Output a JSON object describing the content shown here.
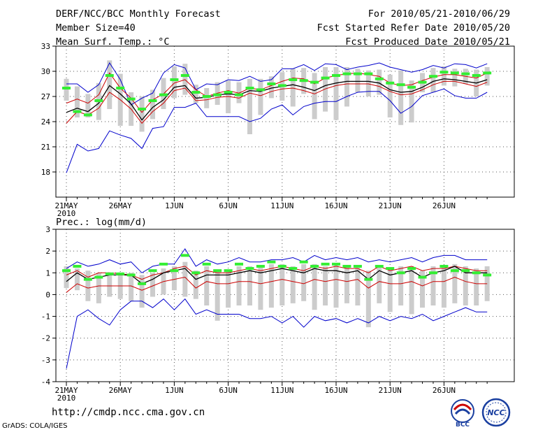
{
  "header": {
    "title": "DERF/NCC/BCC Monthly Forecast",
    "member_size": "Member Size=40",
    "variable": "Mean Surf. Temp.: °C",
    "period": "For 2010/05/21-2010/06/29",
    "started": "Fcst Started Refer Date 2010/05/20",
    "produced": "Fcst Produced Date 2010/05/21"
  },
  "footer": {
    "url": "http://cmdp.ncc.cma.gov.cn",
    "grads": "GrADS: COLA/IGES",
    "logo1": "BCC",
    "logo2": "NCC"
  },
  "colors": {
    "ens_max": "#0000cc",
    "ens_min": "#0000cc",
    "ens_mean": "#000000",
    "ens_band": "#cc0000",
    "obs_marker": "#33ee33",
    "bar": "#cccccc"
  },
  "chart_data": [
    {
      "type": "line",
      "title": "Mean Surf. Temp.: °C",
      "x_tick_labels": [
        "21MAY",
        "26MAY",
        "1JUN",
        "6JUN",
        "11JUN",
        "16JUN",
        "21JUN",
        "26JUN"
      ],
      "x_tick_sub": "2010",
      "ylim": [
        15,
        33
      ],
      "yticks": [
        18,
        21,
        24,
        27,
        30,
        33
      ],
      "series": [
        {
          "name": "max",
          "values": [
            28.5,
            28.5,
            27.5,
            28.4,
            31,
            29,
            26,
            26.8,
            27.4,
            29.8,
            30.8,
            30.4,
            27.8,
            28.5,
            28.4,
            29,
            28.9,
            29.4,
            28.8,
            29,
            30.3,
            30.3,
            30.8,
            30.1,
            30.9,
            30.8,
            30.2,
            30.5,
            30.7,
            31,
            30.5,
            30.2,
            29.9,
            30.2,
            30.7,
            30.4,
            30.9,
            30.8,
            30.4,
            30.9
          ]
        },
        {
          "name": "upper",
          "values": [
            26.2,
            26.7,
            26.2,
            27.2,
            29.8,
            28,
            26.8,
            25.1,
            26.6,
            27.3,
            28.6,
            29,
            27.8,
            27,
            27.4,
            27.7,
            27.4,
            28,
            27.8,
            28.3,
            28.8,
            29.2,
            29.1,
            28.5,
            29.2,
            29.5,
            29.7,
            29.8,
            29.6,
            29.4,
            28.6,
            28.3,
            28.4,
            28.9,
            29.3,
            29.6,
            29.6,
            29.4,
            29.2,
            29.8
          ]
        },
        {
          "name": "mean",
          "values": [
            25.1,
            25.6,
            25.2,
            26.2,
            28.3,
            27.3,
            26.1,
            24.2,
            25.7,
            26.6,
            28.1,
            28.3,
            26.8,
            26.9,
            27.2,
            27.3,
            27.2,
            27.7,
            27.6,
            28,
            28.2,
            28.4,
            28.1,
            27.7,
            28.3,
            28.6,
            28.8,
            28.8,
            28.8,
            28.6,
            27.8,
            27.5,
            27.6,
            28.1,
            28.8,
            29.1,
            29,
            28.8,
            28.6,
            29
          ]
        },
        {
          "name": "lower",
          "values": [
            23.8,
            25.2,
            24.8,
            25.6,
            27.5,
            26.6,
            25.5,
            23.8,
            25.2,
            26.2,
            27.7,
            28,
            26.5,
            26.6,
            26.9,
            27,
            26.8,
            27.4,
            27.1,
            27.6,
            27.9,
            28,
            27.7,
            27.3,
            27.9,
            28.3,
            28.5,
            28.5,
            28.5,
            28.2,
            27.6,
            27.2,
            27.3,
            27.8,
            28.4,
            28.8,
            28.8,
            28.5,
            28.2,
            28.7
          ]
        },
        {
          "name": "min",
          "values": [
            17.9,
            21.3,
            20.5,
            20.8,
            22.9,
            22.4,
            22,
            20.8,
            23.2,
            23.4,
            25.7,
            25.7,
            26.2,
            24.6,
            24.6,
            24.6,
            24.6,
            24,
            24.4,
            25.5,
            26,
            24.8,
            25.8,
            26.2,
            26.4,
            26.4,
            27,
            27.5,
            27.6,
            27.6,
            26.5,
            25,
            25.8,
            27.1,
            27.5,
            27.9,
            27.1,
            26.8,
            26.8,
            27.5
          ]
        },
        {
          "name": "obs",
          "values": [
            28,
            25.2,
            24.8,
            26.5,
            29.5,
            28,
            26.7,
            25.5,
            26.5,
            27.2,
            29,
            29.5,
            27.5,
            27,
            27.2,
            27.5,
            27.2,
            28,
            27.8,
            28.5,
            28.3,
            29,
            28.9,
            28.7,
            29.2,
            29.5,
            29.7,
            29.7,
            29.7,
            29.1,
            28.6,
            28.4,
            28.1,
            28.7,
            29.4,
            29.9,
            29.8,
            29.7,
            29.5,
            29.8
          ]
        },
        {
          "name": "bar_top",
          "values": [
            29.1,
            28.2,
            27.3,
            28.6,
            31.3,
            29.7,
            27.5,
            27,
            27.8,
            29.2,
            30.6,
            30.9,
            28.4,
            28,
            28.7,
            28.9,
            28.7,
            29.1,
            29.1,
            29.4,
            29.9,
            30.3,
            30.4,
            29.8,
            30.5,
            30.5,
            30.5,
            30.3,
            30.1,
            30.2,
            29.6,
            30.1,
            28.9,
            29.8,
            30.4,
            30.6,
            30.3,
            30.3,
            30.2,
            30.5
          ]
        },
        {
          "name": "bar_bottom",
          "values": [
            26.5,
            24.5,
            24.5,
            24.2,
            25.5,
            23.5,
            23.5,
            22.8,
            24.3,
            25.5,
            26.8,
            27.2,
            26.2,
            25.6,
            26,
            25,
            26.2,
            22.5,
            24.8,
            26.8,
            26.5,
            25.8,
            27.3,
            24.3,
            25.2,
            24.2,
            25.8,
            27.5,
            27,
            27.2,
            24.5,
            23.6,
            23.9,
            27.5,
            27.5,
            28.3,
            28.2,
            28.5,
            27,
            28.3
          ]
        }
      ]
    },
    {
      "type": "line",
      "title": "Prec.: log(mm/d)",
      "x_tick_labels": [
        "21MAY",
        "26MAY",
        "1JUN",
        "6JUN",
        "11JUN",
        "16JUN",
        "21JUN",
        "26JUN"
      ],
      "x_tick_sub": "2010",
      "ylim": [
        -4,
        3
      ],
      "yticks": [
        -4,
        -3,
        -2,
        -1,
        0,
        1,
        2,
        3
      ],
      "series": [
        {
          "name": "max",
          "values": [
            1.2,
            1.5,
            1.3,
            1.4,
            1.6,
            1.4,
            1.5,
            1,
            1.3,
            1.4,
            1.4,
            2.1,
            1.3,
            1.6,
            1.4,
            1.5,
            1.7,
            1.5,
            1.5,
            1.6,
            1.6,
            1.7,
            1.5,
            1.8,
            1.6,
            1.7,
            1.6,
            1.7,
            1.5,
            1.6,
            1.5,
            1.6,
            1.7,
            1.5,
            1.7,
            1.8,
            1.8,
            1.6,
            1.6,
            1.6
          ]
        },
        {
          "name": "upper",
          "values": [
            0.9,
            1.1,
            0.8,
            1,
            1,
            0.95,
            0.9,
            0.7,
            0.9,
            1,
            1.2,
            1.3,
            0.9,
            1.1,
            1,
            1,
            1.1,
            1.2,
            1.1,
            1.2,
            1.3,
            1.2,
            1.1,
            1.3,
            1.2,
            1.3,
            1.2,
            1.2,
            1,
            1.3,
            1.1,
            1.2,
            1.3,
            1.1,
            1.2,
            1.2,
            1.3,
            1.2,
            1.1,
            1.1
          ]
        },
        {
          "name": "mean",
          "values": [
            0.6,
            1,
            0.7,
            0.8,
            0.9,
            0.9,
            0.9,
            0.5,
            0.7,
            1,
            1.1,
            1.2,
            0.7,
            0.9,
            0.9,
            0.9,
            1,
            1.1,
            1,
            1.1,
            1.2,
            1.1,
            1,
            1.2,
            1.1,
            1.1,
            1,
            1.1,
            0.7,
            1.1,
            0.9,
            1,
            1.1,
            0.8,
            1,
            1.1,
            1.3,
            1,
            1,
            1
          ]
        },
        {
          "name": "lower",
          "values": [
            0.1,
            0.5,
            0.3,
            0.4,
            0.4,
            0.4,
            0.4,
            0.2,
            0.4,
            0.6,
            0.7,
            0.8,
            0.3,
            0.6,
            0.5,
            0.5,
            0.6,
            0.6,
            0.5,
            0.6,
            0.7,
            0.6,
            0.5,
            0.7,
            0.6,
            0.7,
            0.6,
            0.7,
            0.3,
            0.6,
            0.5,
            0.5,
            0.6,
            0.4,
            0.6,
            0.6,
            0.8,
            0.6,
            0.5,
            0.5
          ]
        },
        {
          "name": "min",
          "values": [
            -3.4,
            -1,
            -0.7,
            -1.1,
            -1.4,
            -0.7,
            -0.3,
            -0.3,
            -0.6,
            -0.2,
            -0.7,
            -0.2,
            -0.9,
            -0.7,
            -0.9,
            -0.9,
            -0.9,
            -1.1,
            -1.1,
            -1,
            -1.3,
            -1,
            -1.5,
            -1,
            -1.2,
            -1.1,
            -1.3,
            -1.1,
            -1.3,
            -1,
            -1.2,
            -1,
            -1.1,
            -0.9,
            -1.2,
            -1,
            -0.8,
            -0.6,
            -0.8,
            -0.8
          ]
        },
        {
          "name": "obs",
          "values": [
            1.1,
            1.3,
            0.7,
            0.8,
            0.95,
            0.95,
            0.9,
            0.5,
            1.1,
            1.4,
            1.1,
            1.8,
            1,
            1.4,
            1.1,
            1.1,
            1.4,
            1.2,
            1.3,
            1.5,
            1.3,
            1.2,
            1.5,
            1.3,
            1.4,
            1.4,
            1.3,
            1.3,
            0.7,
            1.3,
            1.2,
            1,
            1.2,
            0.8,
            1,
            1.3,
            1.1,
            1.1,
            1,
            0.9
          ]
        },
        {
          "name": "bar_top",
          "values": [
            1.3,
            1.2,
            1.1,
            1,
            1,
            1,
            1,
            0.9,
            1,
            1.2,
            1.3,
            1.5,
            1.1,
            1.3,
            1.1,
            1.1,
            1.3,
            1.3,
            1.3,
            1.4,
            1.4,
            1.3,
            1.4,
            1.4,
            1.3,
            1.4,
            1.3,
            1.3,
            1.1,
            1.3,
            1.2,
            1.3,
            1.3,
            1.1,
            1.3,
            1.3,
            1.4,
            1.3,
            1.2,
            1.3
          ]
        },
        {
          "name": "bar_bottom",
          "values": [
            0.3,
            0.2,
            -0.3,
            -0.4,
            -0.1,
            -0.2,
            -0.3,
            -0.6,
            -0.1,
            0,
            0.2,
            -0.1,
            -0.2,
            -0.5,
            -1.2,
            -0.6,
            -0.5,
            -0.5,
            -0.7,
            -0.6,
            -0.5,
            -0.4,
            -0.3,
            -0.7,
            -0.5,
            -0.6,
            -0.4,
            -0.5,
            -1.5,
            -0.4,
            -0.8,
            -0.5,
            -0.9,
            -0.6,
            -0.5,
            -0.6,
            -0.4,
            -0.5,
            -0.5,
            -0.3
          ]
        }
      ]
    }
  ]
}
